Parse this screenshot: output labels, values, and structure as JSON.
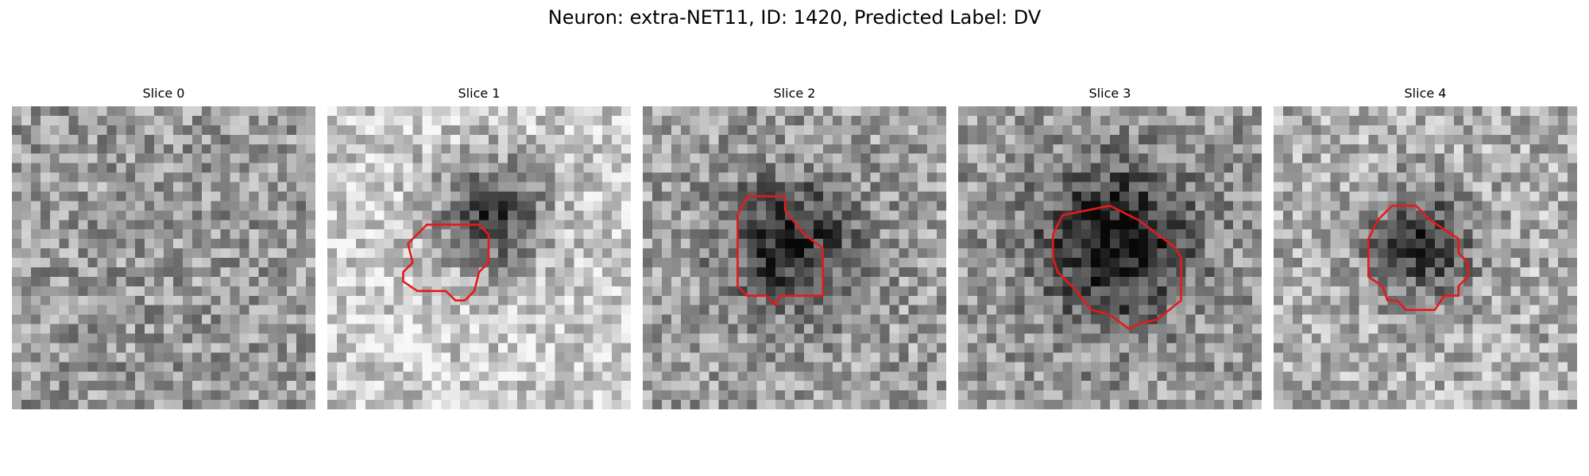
{
  "figure": {
    "title": "Neuron: extra-NET11, ID: 1420, Predicted Label: DV",
    "grid_size": 32
  },
  "colors": {
    "contour": "#e41a1c",
    "colormap": "gray"
  },
  "panels": [
    {
      "title": "Slice 0",
      "blob": null,
      "contour": []
    },
    {
      "title": "Slice 1",
      "blob": {
        "cx": 17,
        "cy": 11,
        "r": 6,
        "strength": 0.55,
        "base": 0.8
      },
      "contour": [
        [
          9.5,
          13.5
        ],
        [
          10.5,
          12.5
        ],
        [
          16,
          12.5
        ],
        [
          17,
          13.5
        ],
        [
          17,
          16.5
        ],
        [
          16,
          17.5
        ],
        [
          15.5,
          19.5
        ],
        [
          14.5,
          20.5
        ],
        [
          13.5,
          20.5
        ],
        [
          12.5,
          19.5
        ],
        [
          9.5,
          19.5
        ],
        [
          8,
          18.5
        ],
        [
          8,
          17.5
        ],
        [
          9,
          16.5
        ],
        [
          8.5,
          14.5
        ]
      ]
    },
    {
      "title": "Slice 2",
      "blob": {
        "cx": 15,
        "cy": 14,
        "r": 7,
        "strength": 0.45,
        "base": 0.62
      },
      "contour": [
        [
          10,
          11.5
        ],
        [
          11,
          9.5
        ],
        [
          15,
          9.5
        ],
        [
          15,
          11
        ],
        [
          17,
          13.5
        ],
        [
          19,
          15
        ],
        [
          19,
          20
        ],
        [
          14.5,
          20
        ],
        [
          14,
          21
        ],
        [
          13,
          20
        ],
        [
          11,
          20
        ],
        [
          10,
          19
        ],
        [
          10,
          17
        ]
      ]
    },
    {
      "title": "Slice 3",
      "blob": {
        "cx": 16,
        "cy": 14,
        "r": 8,
        "strength": 0.55,
        "base": 0.6
      },
      "contour": [
        [
          10,
          13.5
        ],
        [
          11,
          11.5
        ],
        [
          16,
          10.5
        ],
        [
          18,
          11.5
        ],
        [
          19,
          12
        ],
        [
          21,
          13.5
        ],
        [
          23,
          15
        ],
        [
          23.5,
          16
        ],
        [
          23.5,
          20.5
        ],
        [
          21,
          22.5
        ],
        [
          19,
          23
        ],
        [
          18,
          23.5
        ],
        [
          16,
          22
        ],
        [
          14,
          21.5
        ],
        [
          12.5,
          19.5
        ],
        [
          10.5,
          17.5
        ],
        [
          10,
          16
        ]
      ]
    },
    {
      "title": "Slice 4",
      "blob": {
        "cx": 15,
        "cy": 14,
        "r": 5.5,
        "strength": 0.5,
        "base": 0.68
      },
      "contour": [
        [
          10,
          14
        ],
        [
          11,
          12
        ],
        [
          12.5,
          10.5
        ],
        [
          15,
          10.5
        ],
        [
          16.5,
          12
        ],
        [
          19.5,
          14
        ],
        [
          19.5,
          15.5
        ],
        [
          20.5,
          16.5
        ],
        [
          20.5,
          18
        ],
        [
          19.5,
          19
        ],
        [
          19.5,
          20
        ],
        [
          18,
          20
        ],
        [
          17,
          21.5
        ],
        [
          14,
          21.5
        ],
        [
          13,
          20.5
        ],
        [
          12,
          20.5
        ],
        [
          11.5,
          19
        ],
        [
          10,
          18
        ]
      ]
    }
  ]
}
